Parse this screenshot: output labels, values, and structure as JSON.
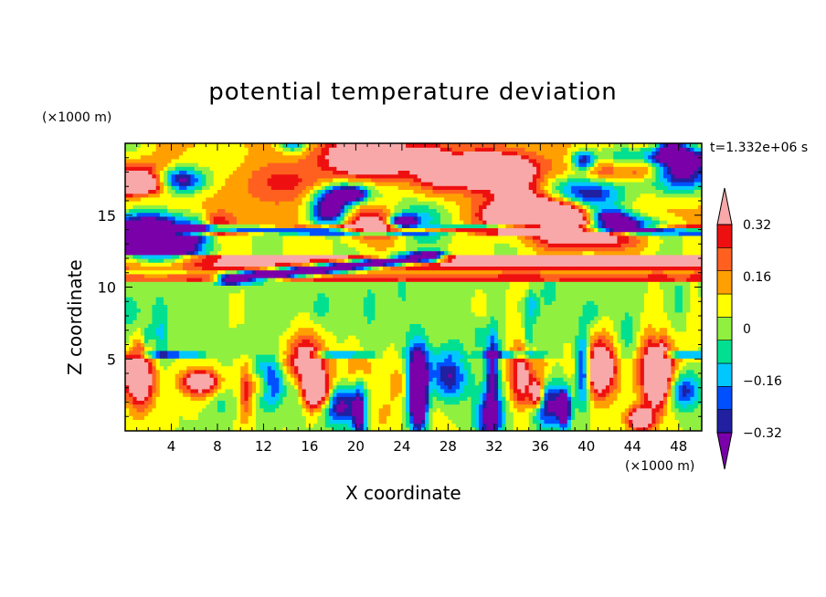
{
  "chart_data": {
    "type": "heatmap",
    "title": "potential temperature deviation",
    "xlabel": "X coordinate",
    "ylabel": "Z coordinate",
    "x_unit": "(×1000 m)",
    "y_unit": "(×1000 m)",
    "time_label": "t=1.332e+06 s",
    "xlim": [
      0,
      50
    ],
    "ylim": [
      0,
      20
    ],
    "x_ticks": [
      4,
      8,
      12,
      16,
      20,
      24,
      28,
      32,
      36,
      40,
      44,
      48
    ],
    "y_ticks": [
      5,
      10,
      15
    ],
    "colorbar": {
      "levels": [
        -0.4,
        -0.32,
        -0.24,
        -0.16,
        -0.08,
        0,
        0.08,
        0.16,
        0.24,
        0.32,
        0.4
      ],
      "labels": [
        "0.32",
        "0.16",
        "0",
        "−0.16",
        "−0.32"
      ],
      "label_values": [
        0.32,
        0.16,
        0,
        -0.16,
        -0.32
      ],
      "colors": [
        "#7a00aa",
        "#2020a0",
        "#0050ff",
        "#00c8ff",
        "#00e090",
        "#90f040",
        "#ffff00",
        "#ffa000",
        "#ff6020",
        "#ee1010",
        "#f8a8a8"
      ],
      "extend": "both"
    },
    "layers": [
      {
        "z_from": 0,
        "z_to": 5.2,
        "pattern": "mixed strong perturbations",
        "values": [
          -0.4,
          0.4
        ]
      },
      {
        "z_from": 5.2,
        "z_to": 10.4,
        "pattern": "weak perturbations",
        "values": [
          -0.12,
          0.04
        ]
      },
      {
        "z_from": 10.4,
        "z_to": 12.6,
        "pattern": "positive bands",
        "values": [
          0.16,
          0.4
        ]
      },
      {
        "z_from": 12.6,
        "z_to": 14.5,
        "pattern": "mixed",
        "values": [
          -0.4,
          0.4
        ]
      },
      {
        "z_from": 14.5,
        "z_to": 20,
        "pattern": "strong positive and negative patches",
        "values": [
          -0.4,
          0.4
        ]
      }
    ]
  }
}
